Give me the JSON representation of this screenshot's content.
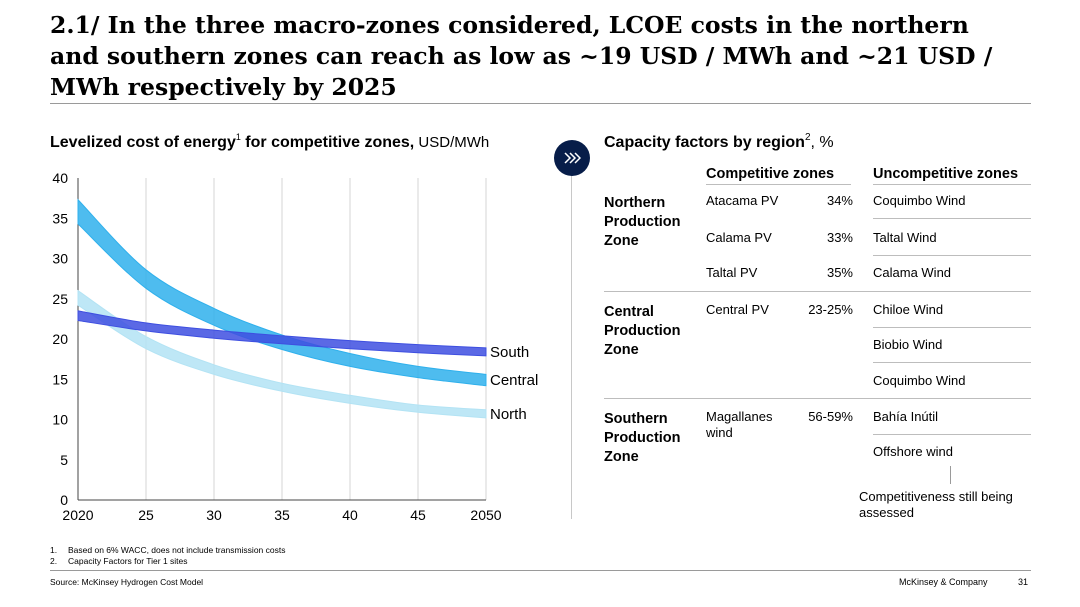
{
  "headline": "2.1/ In the three macro-zones considered, LCOE costs in the northern and southern zones can reach as low as ~19 USD / MWh and ~21 USD / MWh respectively by 2025",
  "chart_title": {
    "main": "Levelized cost of energy",
    "sup": "1",
    "rest": " for competitive zones,",
    "unit": " USD/MWh"
  },
  "chart_data": {
    "type": "area",
    "x": [
      2020,
      2025,
      2030,
      2035,
      2040,
      2045,
      2050
    ],
    "xticks": [
      "2020",
      "25",
      "30",
      "35",
      "40",
      "45",
      "2050"
    ],
    "yticks": [
      "0",
      "5",
      "10",
      "15",
      "20",
      "25",
      "30",
      "35",
      "40"
    ],
    "ylim": [
      0,
      40
    ],
    "xlim": [
      2020,
      2050
    ],
    "grid": "vertical",
    "series": [
      {
        "name": "North",
        "color": "#b3e3f4",
        "upper": [
          26.0,
          20.3,
          16.8,
          14.5,
          13.0,
          11.8,
          11.2
        ],
        "lower": [
          24.2,
          18.8,
          15.6,
          13.5,
          12.0,
          10.9,
          10.2
        ]
      },
      {
        "name": "Central",
        "color": "#2fb0ec",
        "upper": [
          37.3,
          28.6,
          23.8,
          20.5,
          18.2,
          16.6,
          15.6
        ],
        "lower": [
          34.3,
          26.3,
          21.7,
          18.7,
          16.6,
          15.2,
          14.2
        ]
      },
      {
        "name": "South",
        "color": "#3e4fe0",
        "upper": [
          23.5,
          22.0,
          21.1,
          20.4,
          19.8,
          19.3,
          18.9
        ],
        "lower": [
          22.3,
          21.0,
          20.1,
          19.4,
          18.8,
          18.3,
          17.9
        ]
      }
    ]
  },
  "capacity": {
    "title": "Capacity factors by region",
    "sup": "2",
    "unit": ", %",
    "col_competitive": "Competitive zones",
    "col_uncompetitive": "Uncompetitive zones",
    "northern": {
      "zone": "Northern Production Zone",
      "rows": [
        {
          "site": "Atacama PV",
          "pct": "34%",
          "unc": "Coquimbo Wind"
        },
        {
          "site": "Calama PV",
          "pct": "33%",
          "unc": "Taltal Wind"
        },
        {
          "site": "Taltal PV",
          "pct": "35%",
          "unc": "Calama Wind"
        }
      ]
    },
    "central": {
      "zone": "Central Production Zone",
      "site": "Central PV",
      "pct": "23-25%",
      "unc": [
        "Chiloe Wind",
        "Biobio Wind",
        "Coquimbo Wind"
      ]
    },
    "southern": {
      "zone": "Southern Production Zone",
      "site": "Magallanes wind",
      "pct": "56-59%",
      "unc": [
        "Bahía Inútil",
        "Offshore wind"
      ]
    },
    "note": "Competitiveness still being assessed"
  },
  "footnotes": [
    {
      "num": "1.",
      "text": "Based on 6% WACC, does not include transmission costs"
    },
    {
      "num": "2.",
      "text": "Capacity Factors for Tier 1 sites"
    }
  ],
  "source": "Source: McKinsey Hydrogen Cost Model",
  "company": "McKinsey & Company",
  "page_number": "31",
  "icons": {
    "divider_arrow": "double-chevron-right-icon",
    "arrow_color": "#071d49"
  }
}
